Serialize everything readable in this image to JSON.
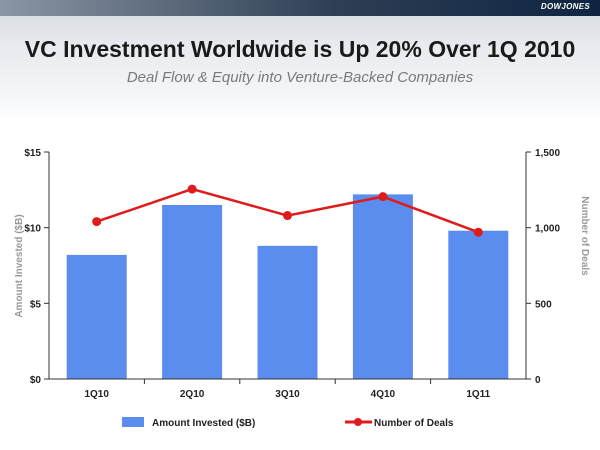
{
  "header": {
    "logo_text": "DOWJONES",
    "title": "VC Investment Worldwide is Up 20% Over 1Q 2010",
    "subtitle": "Deal Flow & Equity into Venture-Backed Companies"
  },
  "colors": {
    "bar": "#5b8def",
    "line": "#e01b1b",
    "axis": "#333333"
  },
  "chart_data": {
    "type": "bar",
    "categories": [
      "1Q10",
      "2Q10",
      "3Q10",
      "4Q10",
      "1Q11"
    ],
    "series": [
      {
        "name": "Amount Invested ($B)",
        "kind": "bar",
        "axis": "left",
        "values": [
          8.2,
          11.5,
          8.8,
          12.2,
          9.8
        ]
      },
      {
        "name": "Number of Deals",
        "kind": "line",
        "axis": "right",
        "values": [
          1040,
          1255,
          1080,
          1205,
          970
        ]
      }
    ],
    "ylabel_left": "Amount Invested ($B)",
    "ylabel_right": "Number of Deals",
    "ylim_left": [
      0,
      15
    ],
    "ylim_right": [
      0,
      1500
    ],
    "yticks_left": [
      "$0",
      "$5",
      "$10",
      "$15"
    ],
    "yticks_right": [
      "0",
      "500",
      "1,000",
      "1,500"
    ],
    "legend": [
      "Amount Invested ($B)",
      "Number of Deals"
    ],
    "legend_position": "bottom"
  }
}
